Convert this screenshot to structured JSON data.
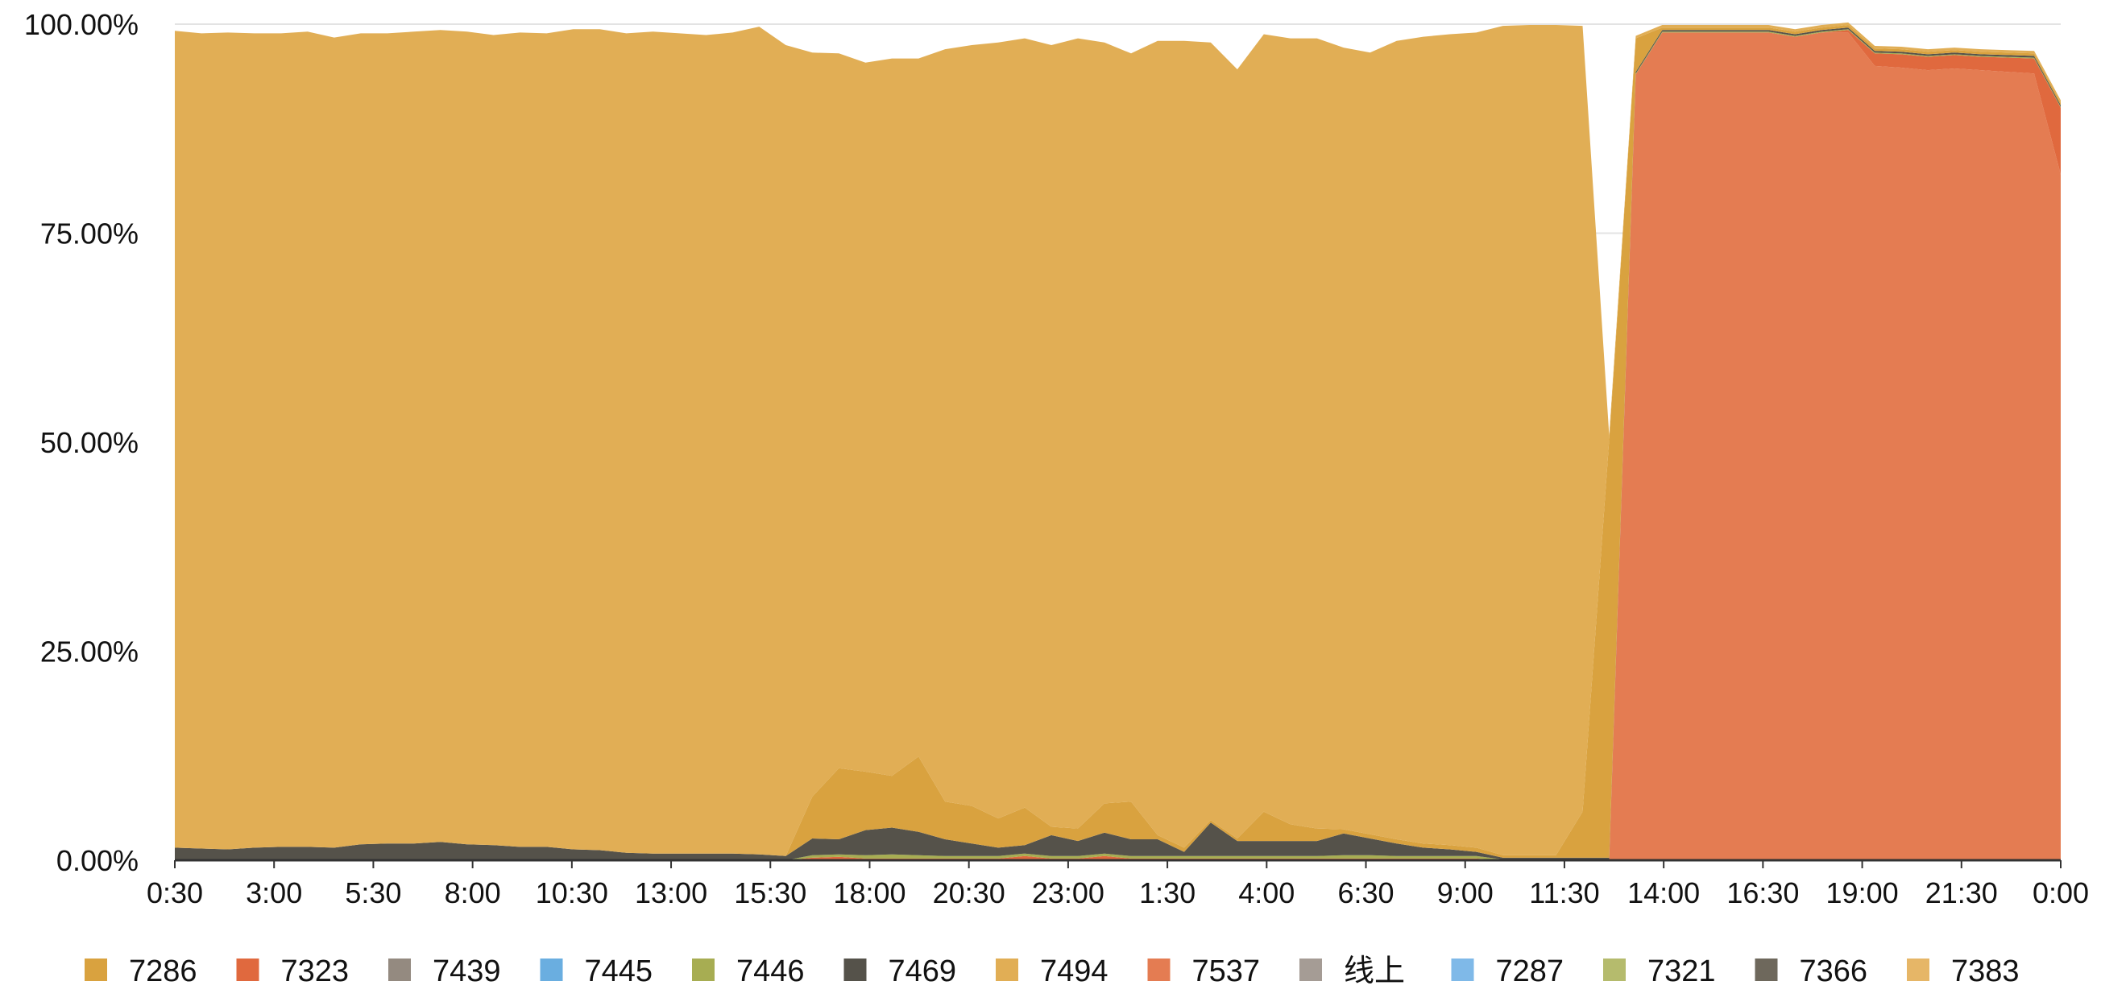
{
  "chart_data": {
    "type": "area",
    "stacked": true,
    "normalized": true,
    "title": "",
    "xlabel": "",
    "ylabel": "",
    "ylim": [
      0,
      100
    ],
    "y_ticks": [
      "0.00%",
      "25.00%",
      "50.00%",
      "75.00%",
      "100.00%"
    ],
    "x_ticks": [
      "0:30",
      "3:00",
      "5:30",
      "8:00",
      "10:30",
      "13:00",
      "15:30",
      "18:00",
      "20:30",
      "23:00",
      "1:30",
      "4:00",
      "6:30",
      "9:00",
      "11:30",
      "14:00",
      "16:30",
      "19:00",
      "21:30",
      "0:00"
    ],
    "grid": true,
    "legend_position": "bottom",
    "legend": [
      {
        "name": "7286",
        "color": "#D9A23F"
      },
      {
        "name": "7323",
        "color": "#E0693E"
      },
      {
        "name": "7439",
        "color": "#948A80"
      },
      {
        "name": "7445",
        "color": "#6AAEE0"
      },
      {
        "name": "7446",
        "color": "#A7AD52"
      },
      {
        "name": "7469",
        "color": "#55524A"
      },
      {
        "name": "7494",
        "color": "#E1AE55"
      },
      {
        "name": "7537",
        "color": "#E47C52"
      },
      {
        "name": "线上",
        "color": "#A59C95"
      },
      {
        "name": "7287",
        "color": "#7FB9E8"
      },
      {
        "name": "7321",
        "color": "#B5BB6D"
      },
      {
        "name": "7366",
        "color": "#6E685C"
      },
      {
        "name": "7383",
        "color": "#E6B667"
      }
    ],
    "series_order": [
      "7537",
      "7323",
      "7446",
      "7469",
      "7286",
      "7494"
    ],
    "series": [
      {
        "name": "7494",
        "color": "#E1AE55",
        "values": [
          97.7,
          97.5,
          97.7,
          97.4,
          97.3,
          97.5,
          96.9,
          97.0,
          96.9,
          97.1,
          97.1,
          97.2,
          96.9,
          97.4,
          97.3,
          98.1,
          98.2,
          98.0,
          98.3,
          98.1,
          97.9,
          98.2,
          99.0,
          97.0,
          89.0,
          85.5,
          84.8,
          85.8,
          83.5,
          90.0,
          91.0,
          92.8,
          92.0,
          93.5,
          94.5,
          91.0,
          89.5,
          95.0,
          96.5,
          93.0,
          92.0,
          93.0,
          94.0,
          94.5,
          93.5,
          93.5,
          95.5,
          96.5,
          97.0,
          97.5,
          99.2,
          99.3,
          99.3,
          94.0,
          0.5,
          0.3,
          0.3,
          0.3,
          0.3,
          0.3,
          0.3,
          0.3,
          0.3,
          0.3,
          0.3,
          0.3,
          0.3,
          0.3,
          0.3,
          0.3,
          0.3,
          0.3
        ]
      },
      {
        "name": "7286",
        "color": "#D9A23F",
        "values": [
          0.0,
          0.0,
          0.0,
          0.0,
          0.0,
          0.0,
          0.0,
          0.0,
          0.0,
          0.0,
          0.0,
          0.0,
          0.0,
          0.0,
          0.0,
          0.0,
          0.0,
          0.0,
          0.0,
          0.0,
          0.0,
          0.0,
          0.0,
          0.0,
          5.0,
          8.5,
          7.0,
          6.2,
          9.0,
          4.5,
          4.5,
          3.5,
          4.5,
          1.0,
          1.5,
          3.5,
          4.5,
          0.5,
          0.5,
          0.3,
          0.3,
          3.5,
          2.0,
          1.5,
          0.5,
          0.5,
          0.5,
          0.5,
          0.5,
          0.5,
          0.3,
          0.3,
          0.3,
          5.5,
          50.0,
          4.0,
          0.3,
          0.3,
          0.3,
          0.3,
          0.3,
          0.3,
          0.3,
          0.3,
          0.3,
          0.3,
          0.3,
          0.3,
          0.3,
          0.3,
          0.3,
          0.3
        ]
      },
      {
        "name": "7469",
        "color": "#55524A",
        "values": [
          1.5,
          1.4,
          1.3,
          1.5,
          1.6,
          1.6,
          1.5,
          1.9,
          2.0,
          2.0,
          2.2,
          1.9,
          1.8,
          1.6,
          1.6,
          1.3,
          1.2,
          0.9,
          0.8,
          0.8,
          0.8,
          0.8,
          0.7,
          0.5,
          2.0,
          1.8,
          3.0,
          3.2,
          2.8,
          2.0,
          1.5,
          1.0,
          1.0,
          2.5,
          1.8,
          2.5,
          2.0,
          2.0,
          0.5,
          4.0,
          1.8,
          1.8,
          1.8,
          1.8,
          2.6,
          2.0,
          1.5,
          1.0,
          0.8,
          0.5,
          0.2,
          0.2,
          0.2,
          0.2,
          0.2,
          0.2,
          0.2,
          0.2,
          0.2,
          0.2,
          0.2,
          0.2,
          0.2,
          0.2,
          0.2,
          0.2,
          0.2,
          0.2,
          0.2,
          0.2,
          0.2,
          0.2
        ]
      },
      {
        "name": "7446",
        "color": "#A7AD52",
        "values": [
          0.0,
          0.0,
          0.0,
          0.0,
          0.0,
          0.0,
          0.0,
          0.0,
          0.0,
          0.0,
          0.0,
          0.0,
          0.0,
          0.0,
          0.0,
          0.0,
          0.0,
          0.0,
          0.0,
          0.0,
          0.0,
          0.0,
          0.0,
          0.0,
          0.3,
          0.3,
          0.4,
          0.5,
          0.4,
          0.3,
          0.3,
          0.3,
          0.3,
          0.3,
          0.3,
          0.3,
          0.3,
          0.3,
          0.3,
          0.3,
          0.3,
          0.3,
          0.3,
          0.3,
          0.4,
          0.4,
          0.3,
          0.3,
          0.3,
          0.3,
          0.1,
          0.1,
          0.1,
          0.1,
          0.1,
          0.1,
          0.1,
          0.1,
          0.1,
          0.1,
          0.1,
          0.1,
          0.1,
          0.1,
          0.1,
          0.1,
          0.1,
          0.1,
          0.1,
          0.1,
          0.1,
          0.1
        ]
      },
      {
        "name": "7323",
        "color": "#E0693E",
        "values": [
          0.0,
          0.0,
          0.0,
          0.0,
          0.0,
          0.0,
          0.0,
          0.0,
          0.0,
          0.0,
          0.0,
          0.0,
          0.0,
          0.0,
          0.0,
          0.0,
          0.0,
          0.0,
          0.0,
          0.0,
          0.0,
          0.0,
          0.0,
          0.0,
          0.3,
          0.4,
          0.2,
          0.2,
          0.2,
          0.2,
          0.2,
          0.2,
          0.5,
          0.2,
          0.2,
          0.5,
          0.2,
          0.2,
          0.2,
          0.2,
          0.2,
          0.2,
          0.2,
          0.2,
          0.2,
          0.2,
          0.2,
          0.2,
          0.2,
          0.2,
          0.0,
          0.0,
          0.0,
          0.0,
          0.0,
          0.0,
          0.0,
          0.0,
          0.0,
          0.0,
          0.0,
          0.0,
          0.0,
          0.3,
          1.5,
          1.6,
          1.6,
          1.6,
          1.6,
          1.7,
          1.8,
          8.0
        ]
      },
      {
        "name": "7537",
        "color": "#E47C52",
        "values": [
          0.0,
          0.0,
          0.0,
          0.0,
          0.0,
          0.0,
          0.0,
          0.0,
          0.0,
          0.0,
          0.0,
          0.0,
          0.0,
          0.0,
          0.0,
          0.0,
          0.0,
          0.0,
          0.0,
          0.0,
          0.0,
          0.0,
          0.0,
          0.0,
          0.0,
          0.0,
          0.0,
          0.0,
          0.0,
          0.0,
          0.0,
          0.0,
          0.0,
          0.0,
          0.0,
          0.0,
          0.0,
          0.0,
          0.0,
          0.0,
          0.0,
          0.0,
          0.0,
          0.0,
          0.0,
          0.0,
          0.0,
          0.0,
          0.0,
          0.0,
          0.0,
          0.0,
          0.0,
          0.0,
          0.0,
          94.0,
          99.0,
          99.0,
          99.0,
          99.0,
          99.0,
          98.5,
          99.0,
          99.0,
          95.0,
          94.8,
          94.5,
          94.7,
          94.5,
          94.3,
          94.1,
          82.0
        ]
      }
    ]
  }
}
